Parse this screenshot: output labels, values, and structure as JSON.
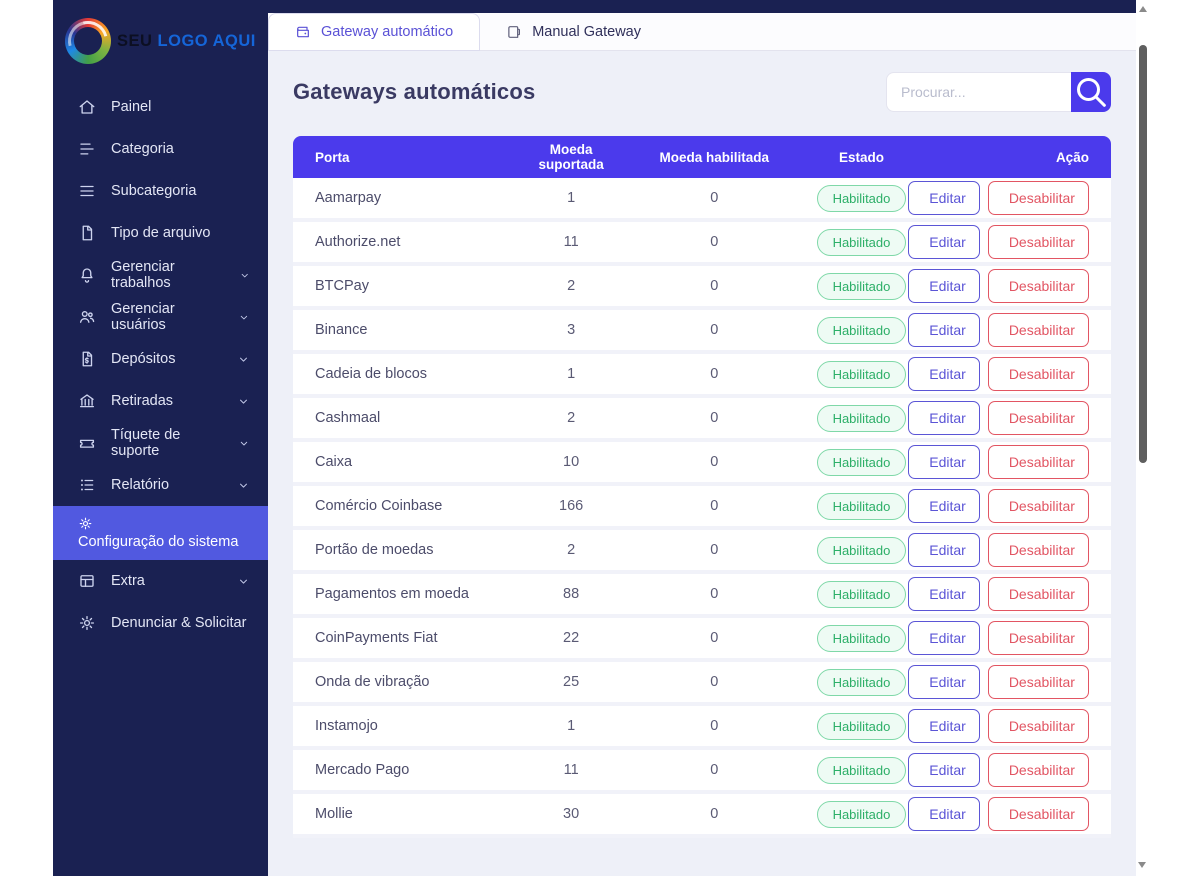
{
  "sidebar": {
    "logo": {
      "accent_text": "SEU",
      "main_text": "LOGO AQUI"
    },
    "items": [
      {
        "label": "Painel",
        "icon": "home-icon",
        "chevron": false,
        "active": false
      },
      {
        "label": "Categoria",
        "icon": "category-icon",
        "chevron": false,
        "active": false
      },
      {
        "label": "Subcategoria",
        "icon": "menu-icon",
        "chevron": false,
        "active": false
      },
      {
        "label": "Tipo de arquivo",
        "icon": "file-icon",
        "chevron": false,
        "active": false
      },
      {
        "label": "Gerenciar trabalhos",
        "icon": "bell-icon",
        "chevron": true,
        "active": false
      },
      {
        "label": "Gerenciar usuários",
        "icon": "users-icon",
        "chevron": true,
        "active": false
      },
      {
        "label": "Depósitos",
        "icon": "deposit-icon",
        "chevron": true,
        "active": false
      },
      {
        "label": "Retiradas",
        "icon": "bank-icon",
        "chevron": true,
        "active": false
      },
      {
        "label": "Tíquete de suporte",
        "icon": "ticket-icon",
        "chevron": true,
        "active": false
      },
      {
        "label": "Relatório",
        "icon": "report-icon",
        "chevron": true,
        "active": false
      },
      {
        "label": "Configuração do sistema",
        "icon": "gear-icon",
        "chevron": false,
        "active": true
      },
      {
        "label": "Extra",
        "icon": "extra-icon",
        "chevron": true,
        "active": false
      },
      {
        "label": "Denunciar & Solicitar",
        "icon": "gear-icon",
        "chevron": false,
        "active": false
      }
    ]
  },
  "tabs": [
    {
      "label": "Gateway automático",
      "icon": "wallet-icon",
      "active": true
    },
    {
      "label": "Manual Gateway",
      "icon": "wallet2-icon",
      "active": false
    }
  ],
  "main": {
    "title": "Gateways automáticos",
    "search": {
      "placeholder": "Procurar...",
      "button_icon": "search-icon"
    }
  },
  "table": {
    "headers": [
      "Porta",
      "Moeda suportada",
      "Moeda habilitada",
      "Estado",
      "Ação"
    ],
    "actions": {
      "edit": "Editar",
      "disable": "Desabilitar"
    },
    "rows": [
      {
        "porta": "Aamarpay",
        "suportada": "1",
        "habilitada": "0",
        "estado": "Habilitado"
      },
      {
        "porta": "Authorize.net",
        "suportada": "11",
        "habilitada": "0",
        "estado": "Habilitado"
      },
      {
        "porta": "BTCPay",
        "suportada": "2",
        "habilitada": "0",
        "estado": "Habilitado"
      },
      {
        "porta": "Binance",
        "suportada": "3",
        "habilitada": "0",
        "estado": "Habilitado"
      },
      {
        "porta": "Cadeia de blocos",
        "suportada": "1",
        "habilitada": "0",
        "estado": "Habilitado"
      },
      {
        "porta": "Cashmaal",
        "suportada": "2",
        "habilitada": "0",
        "estado": "Habilitado"
      },
      {
        "porta": "Caixa",
        "suportada": "10",
        "habilitada": "0",
        "estado": "Habilitado"
      },
      {
        "porta": "Comércio Coinbase",
        "suportada": "166",
        "habilitada": "0",
        "estado": "Habilitado"
      },
      {
        "porta": "Portão de moedas",
        "suportada": "2",
        "habilitada": "0",
        "estado": "Habilitado"
      },
      {
        "porta": "Pagamentos em moeda",
        "suportada": "88",
        "habilitada": "0",
        "estado": "Habilitado"
      },
      {
        "porta": "CoinPayments Fiat",
        "suportada": "22",
        "habilitada": "0",
        "estado": "Habilitado"
      },
      {
        "porta": "Onda de vibração",
        "suportada": "25",
        "habilitada": "0",
        "estado": "Habilitado"
      },
      {
        "porta": "Instamojo",
        "suportada": "1",
        "habilitada": "0",
        "estado": "Habilitado"
      },
      {
        "porta": "Mercado Pago",
        "suportada": "11",
        "habilitada": "0",
        "estado": "Habilitado"
      },
      {
        "porta": "Mollie",
        "suportada": "30",
        "habilitada": "0",
        "estado": "Habilitado"
      }
    ]
  },
  "colors": {
    "sidebar_bg": "#1a2152",
    "sidebar_active_bg": "#5159e0",
    "content_bg": "#eef0f8",
    "table_header_bg": "#4b3aec",
    "accent_purple": "#5a51d6",
    "status_green": "#2daf68",
    "danger_red": "#e25563",
    "logo_blue": "#1565d8"
  }
}
